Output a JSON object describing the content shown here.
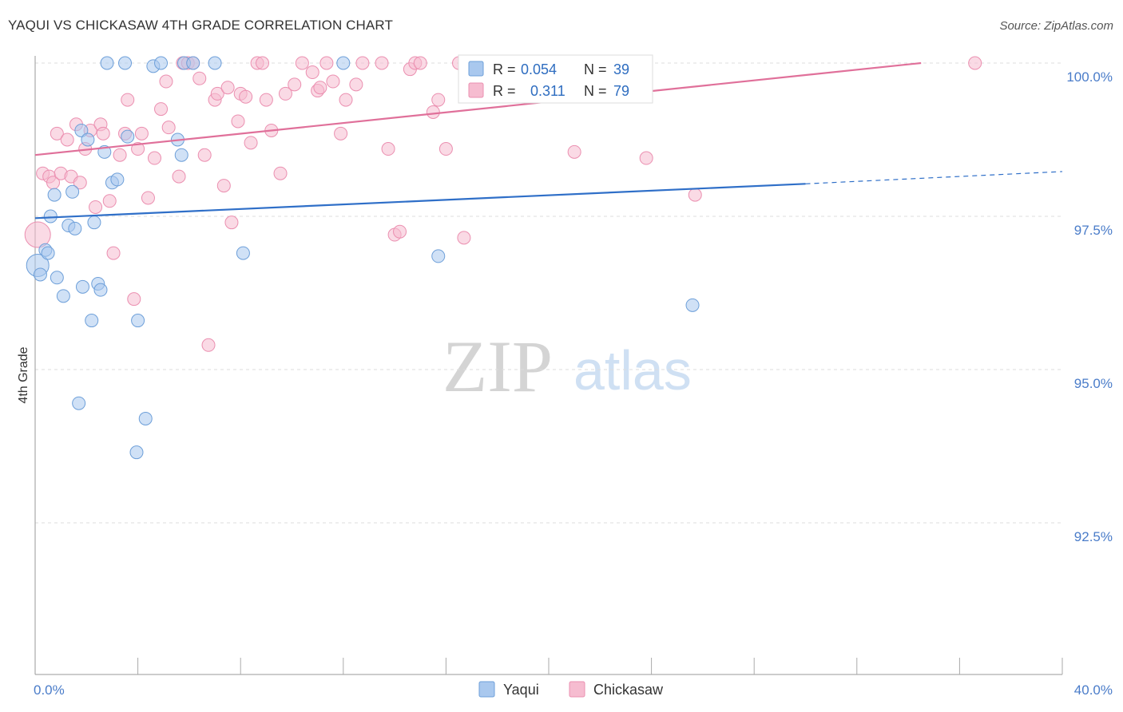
{
  "header": {
    "title": "YAQUI VS CHICKASAW 4TH GRADE CORRELATION CHART",
    "source": "Source: ZipAtlas.com"
  },
  "watermark": {
    "zip": "ZIP",
    "atlas": "atlas"
  },
  "colors": {
    "yaqui_fill": "#a9c8ee",
    "yaqui_stroke": "#6d9fd9",
    "yaqui_line": "#2f6fc8",
    "chickasaw_fill": "#f6bcd0",
    "chickasaw_stroke": "#eb8fb0",
    "chickasaw_line": "#e0709a",
    "grid": "#dddddd",
    "axis_text": "#4a7cc9"
  },
  "stats": {
    "yaqui": {
      "r_label": "R =",
      "r_value": "0.054",
      "n_label": "N =",
      "n_value": "39"
    },
    "chickasaw": {
      "r_label": "R =",
      "r_value": "0.311",
      "n_label": "N =",
      "n_value": "79"
    }
  },
  "chart_data": {
    "type": "scatter",
    "title": "YAQUI VS CHICKASAW 4TH GRADE CORRELATION CHART",
    "xlabel": "",
    "ylabel": "4th Grade",
    "xlim": [
      0,
      40
    ],
    "ylim": [
      90.0,
      100.2
    ],
    "x_tick_labels": [
      {
        "value": 0,
        "label": "0.0%"
      },
      {
        "value": 40,
        "label": "40.0%"
      }
    ],
    "x_minor_ticks": [
      4,
      8,
      12,
      16,
      20,
      24,
      28,
      32,
      36
    ],
    "y_ticks": [
      {
        "value": 100.0,
        "label": "100.0%"
      },
      {
        "value": 97.5,
        "label": "97.5%"
      },
      {
        "value": 95.0,
        "label": "95.0%"
      },
      {
        "value": 92.5,
        "label": "92.5%"
      }
    ],
    "grid": true,
    "legend_position": "bottom",
    "series": [
      {
        "name": "Yaqui",
        "r": 0.054,
        "n": 39,
        "trend": {
          "x0": 0,
          "y0": 97.47,
          "x1": 30,
          "y1": 98.03,
          "dash_to_x": 40,
          "dash_y": 98.23
        },
        "points": [
          {
            "x": 0.1,
            "y": 96.7,
            "s": 14
          },
          {
            "x": 0.2,
            "y": 96.55,
            "s": 8
          },
          {
            "x": 0.4,
            "y": 96.95,
            "s": 8
          },
          {
            "x": 0.5,
            "y": 96.9,
            "s": 8
          },
          {
            "x": 0.6,
            "y": 97.5,
            "s": 8
          },
          {
            "x": 0.75,
            "y": 97.85,
            "s": 8
          },
          {
            "x": 0.85,
            "y": 96.5,
            "s": 8
          },
          {
            "x": 1.1,
            "y": 96.2,
            "s": 8
          },
          {
            "x": 1.3,
            "y": 97.35,
            "s": 8
          },
          {
            "x": 1.45,
            "y": 97.9,
            "s": 8
          },
          {
            "x": 1.55,
            "y": 97.3,
            "s": 8
          },
          {
            "x": 1.7,
            "y": 94.45,
            "s": 8
          },
          {
            "x": 1.8,
            "y": 98.9,
            "s": 8
          },
          {
            "x": 1.85,
            "y": 96.35,
            "s": 8
          },
          {
            "x": 2.05,
            "y": 98.75,
            "s": 8
          },
          {
            "x": 2.2,
            "y": 95.8,
            "s": 8
          },
          {
            "x": 2.3,
            "y": 97.4,
            "s": 8
          },
          {
            "x": 2.45,
            "y": 96.4,
            "s": 8
          },
          {
            "x": 2.55,
            "y": 96.3,
            "s": 8
          },
          {
            "x": 2.7,
            "y": 98.55,
            "s": 8
          },
          {
            "x": 2.8,
            "y": 100.0,
            "s": 8
          },
          {
            "x": 3.0,
            "y": 98.05,
            "s": 8
          },
          {
            "x": 3.2,
            "y": 98.1,
            "s": 8
          },
          {
            "x": 3.5,
            "y": 100.0,
            "s": 8
          },
          {
            "x": 3.6,
            "y": 98.8,
            "s": 8
          },
          {
            "x": 3.95,
            "y": 93.65,
            "s": 8
          },
          {
            "x": 4.0,
            "y": 95.8,
            "s": 8
          },
          {
            "x": 4.3,
            "y": 94.2,
            "s": 8
          },
          {
            "x": 4.6,
            "y": 99.95,
            "s": 8
          },
          {
            "x": 4.9,
            "y": 100.0,
            "s": 8
          },
          {
            "x": 5.55,
            "y": 98.75,
            "s": 8
          },
          {
            "x": 5.7,
            "y": 98.5,
            "s": 8
          },
          {
            "x": 5.8,
            "y": 100.0,
            "s": 8
          },
          {
            "x": 6.15,
            "y": 100.0,
            "s": 8
          },
          {
            "x": 7.0,
            "y": 100.0,
            "s": 8
          },
          {
            "x": 8.1,
            "y": 96.9,
            "s": 8
          },
          {
            "x": 12.0,
            "y": 100.0,
            "s": 8
          },
          {
            "x": 15.7,
            "y": 96.85,
            "s": 8
          },
          {
            "x": 25.6,
            "y": 96.05,
            "s": 8
          }
        ]
      },
      {
        "name": "Chickasaw",
        "r": 0.311,
        "n": 79,
        "trend": {
          "x0": 0,
          "y0": 98.5,
          "x1": 34.5,
          "y1": 100.0
        },
        "points": [
          {
            "x": 0.1,
            "y": 97.2,
            "s": 16
          },
          {
            "x": 0.3,
            "y": 98.2,
            "s": 8
          },
          {
            "x": 0.55,
            "y": 98.15,
            "s": 8
          },
          {
            "x": 0.7,
            "y": 98.05,
            "s": 8
          },
          {
            "x": 0.85,
            "y": 98.85,
            "s": 8
          },
          {
            "x": 1.0,
            "y": 98.2,
            "s": 8
          },
          {
            "x": 1.25,
            "y": 98.75,
            "s": 8
          },
          {
            "x": 1.4,
            "y": 98.15,
            "s": 8
          },
          {
            "x": 1.6,
            "y": 99.0,
            "s": 8
          },
          {
            "x": 1.75,
            "y": 98.05,
            "s": 8
          },
          {
            "x": 1.95,
            "y": 98.6,
            "s": 8
          },
          {
            "x": 2.15,
            "y": 98.9,
            "s": 8
          },
          {
            "x": 2.35,
            "y": 97.65,
            "s": 8
          },
          {
            "x": 2.55,
            "y": 99.0,
            "s": 8
          },
          {
            "x": 2.65,
            "y": 98.85,
            "s": 8
          },
          {
            "x": 2.9,
            "y": 97.75,
            "s": 8
          },
          {
            "x": 3.05,
            "y": 96.9,
            "s": 8
          },
          {
            "x": 3.3,
            "y": 98.5,
            "s": 8
          },
          {
            "x": 3.5,
            "y": 98.85,
            "s": 8
          },
          {
            "x": 3.6,
            "y": 99.4,
            "s": 8
          },
          {
            "x": 3.85,
            "y": 96.15,
            "s": 8
          },
          {
            "x": 4.0,
            "y": 98.6,
            "s": 8
          },
          {
            "x": 4.15,
            "y": 98.85,
            "s": 8
          },
          {
            "x": 4.4,
            "y": 97.8,
            "s": 8
          },
          {
            "x": 4.65,
            "y": 98.45,
            "s": 8
          },
          {
            "x": 4.9,
            "y": 99.25,
            "s": 8
          },
          {
            "x": 5.1,
            "y": 99.7,
            "s": 8
          },
          {
            "x": 5.2,
            "y": 98.95,
            "s": 8
          },
          {
            "x": 5.6,
            "y": 98.15,
            "s": 8
          },
          {
            "x": 5.75,
            "y": 100.0,
            "s": 8
          },
          {
            "x": 5.95,
            "y": 100.0,
            "s": 8
          },
          {
            "x": 6.15,
            "y": 100.0,
            "s": 8
          },
          {
            "x": 6.4,
            "y": 99.75,
            "s": 8
          },
          {
            "x": 6.6,
            "y": 98.5,
            "s": 8
          },
          {
            "x": 6.75,
            "y": 95.4,
            "s": 8
          },
          {
            "x": 7.0,
            "y": 99.4,
            "s": 8
          },
          {
            "x": 7.1,
            "y": 99.5,
            "s": 8
          },
          {
            "x": 7.35,
            "y": 98.0,
            "s": 8
          },
          {
            "x": 7.5,
            "y": 99.6,
            "s": 8
          },
          {
            "x": 7.65,
            "y": 97.4,
            "s": 8
          },
          {
            "x": 7.9,
            "y": 99.05,
            "s": 8
          },
          {
            "x": 8.0,
            "y": 99.5,
            "s": 8
          },
          {
            "x": 8.2,
            "y": 99.45,
            "s": 8
          },
          {
            "x": 8.4,
            "y": 98.7,
            "s": 8
          },
          {
            "x": 8.65,
            "y": 100.0,
            "s": 8
          },
          {
            "x": 8.85,
            "y": 100.0,
            "s": 8
          },
          {
            "x": 9.0,
            "y": 99.4,
            "s": 8
          },
          {
            "x": 9.2,
            "y": 98.9,
            "s": 8
          },
          {
            "x": 9.55,
            "y": 98.2,
            "s": 8
          },
          {
            "x": 9.75,
            "y": 99.5,
            "s": 8
          },
          {
            "x": 10.1,
            "y": 99.65,
            "s": 8
          },
          {
            "x": 10.4,
            "y": 100.0,
            "s": 8
          },
          {
            "x": 10.8,
            "y": 99.85,
            "s": 8
          },
          {
            "x": 11.0,
            "y": 99.55,
            "s": 8
          },
          {
            "x": 11.1,
            "y": 99.6,
            "s": 8
          },
          {
            "x": 11.35,
            "y": 100.0,
            "s": 8
          },
          {
            "x": 11.6,
            "y": 99.7,
            "s": 8
          },
          {
            "x": 11.9,
            "y": 98.85,
            "s": 8
          },
          {
            "x": 12.1,
            "y": 99.4,
            "s": 8
          },
          {
            "x": 12.5,
            "y": 99.65,
            "s": 8
          },
          {
            "x": 12.75,
            "y": 100.0,
            "s": 8
          },
          {
            "x": 13.5,
            "y": 100.0,
            "s": 8
          },
          {
            "x": 13.75,
            "y": 98.6,
            "s": 8
          },
          {
            "x": 14.0,
            "y": 97.2,
            "s": 8
          },
          {
            "x": 14.2,
            "y": 97.25,
            "s": 8
          },
          {
            "x": 14.6,
            "y": 99.9,
            "s": 8
          },
          {
            "x": 14.8,
            "y": 100.0,
            "s": 8
          },
          {
            "x": 15.0,
            "y": 100.0,
            "s": 8
          },
          {
            "x": 15.5,
            "y": 99.2,
            "s": 8
          },
          {
            "x": 15.7,
            "y": 99.4,
            "s": 8
          },
          {
            "x": 16.0,
            "y": 98.6,
            "s": 8
          },
          {
            "x": 16.5,
            "y": 100.0,
            "s": 8
          },
          {
            "x": 16.7,
            "y": 97.15,
            "s": 8
          },
          {
            "x": 16.9,
            "y": 99.95,
            "s": 8
          },
          {
            "x": 19.0,
            "y": 100.0,
            "s": 8
          },
          {
            "x": 21.0,
            "y": 98.55,
            "s": 8
          },
          {
            "x": 23.8,
            "y": 98.45,
            "s": 8
          },
          {
            "x": 25.7,
            "y": 97.85,
            "s": 8
          },
          {
            "x": 36.6,
            "y": 100.0,
            "s": 8
          }
        ]
      }
    ]
  },
  "legend": {
    "items": [
      {
        "label": "Yaqui"
      },
      {
        "label": "Chickasaw"
      }
    ]
  }
}
